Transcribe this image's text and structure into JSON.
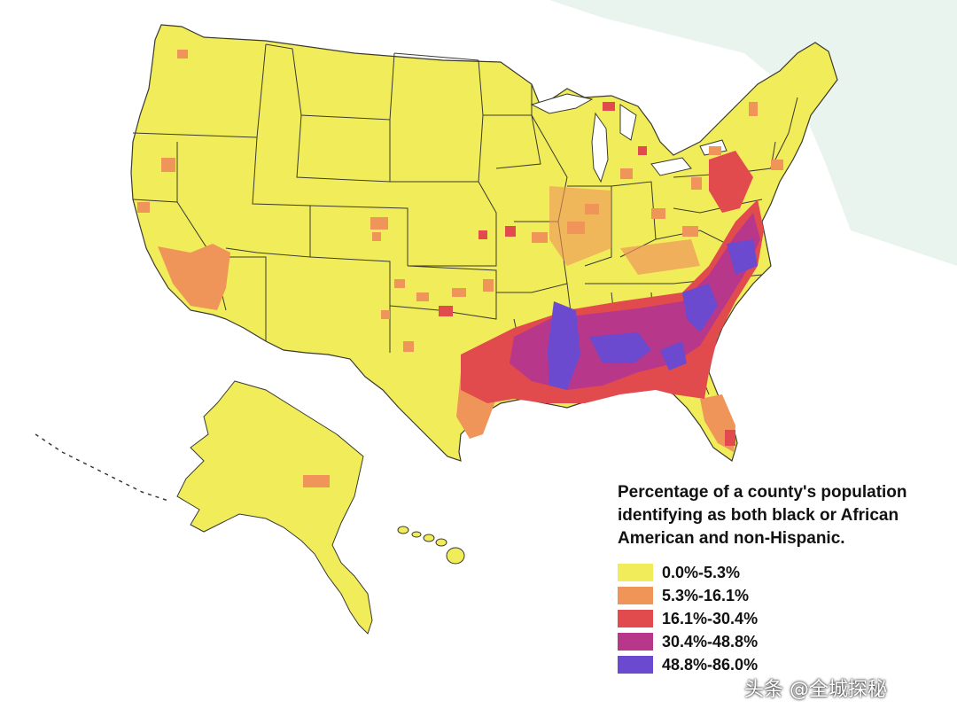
{
  "map": {
    "colors": {
      "background": "#ffffff",
      "land": "#f1ec5a",
      "state_border": "#3a3a30",
      "coast_tint": "#e6f2ea"
    },
    "legend": {
      "title": "Percentage of a county's population identifying as both black or African American and non-Hispanic.",
      "items": [
        {
          "label": "0.0%-5.3%",
          "color": "#f1ec5a"
        },
        {
          "label": "5.3%-16.1%",
          "color": "#f0955a"
        },
        {
          "label": "16.1%-30.4%",
          "color": "#e24b4e"
        },
        {
          "label": "30.4%-48.8%",
          "color": "#b7378a"
        },
        {
          "label": "48.8%-86.0%",
          "color": "#6b4ad0"
        }
      ]
    }
  },
  "watermark": {
    "text": "头条 @全城探秘"
  }
}
